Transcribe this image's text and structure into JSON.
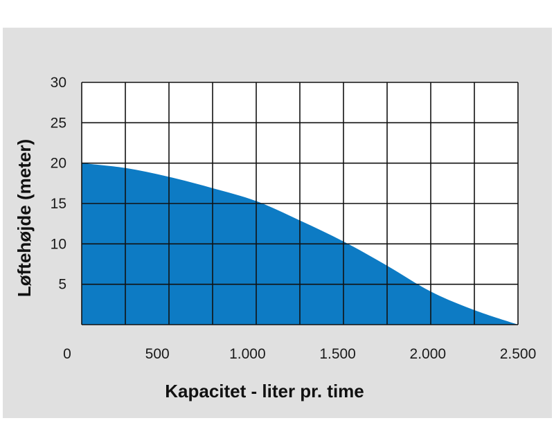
{
  "chart_data": {
    "type": "area",
    "title": "",
    "xlabel": "Kapacitet - liter pr. time",
    "ylabel": "Løftehøjde (meter)",
    "xlim": [
      0,
      2500
    ],
    "ylim": [
      0,
      30
    ],
    "x_ticks": [
      {
        "value": 0,
        "label": "0"
      },
      {
        "value": 500,
        "label": "500"
      },
      {
        "value": 1000,
        "label": "1.000"
      },
      {
        "value": 1500,
        "label": "1.500"
      },
      {
        "value": 2000,
        "label": "2.000"
      },
      {
        "value": 2500,
        "label": "2.500"
      }
    ],
    "y_ticks": [
      {
        "value": 5,
        "label": "5"
      },
      {
        "value": 10,
        "label": "10"
      },
      {
        "value": 15,
        "label": "15"
      },
      {
        "value": 20,
        "label": "20"
      },
      {
        "value": 25,
        "label": "25"
      },
      {
        "value": 30,
        "label": "30"
      }
    ],
    "grid": true,
    "grid_x_step": 250,
    "grid_y_step": 5,
    "series": [
      {
        "x": [
          0,
          250,
          500,
          750,
          1000,
          1250,
          1500,
          1750,
          2000,
          2250,
          2500
        ],
        "values": [
          20,
          19.4,
          18.3,
          16.9,
          15.3,
          12.9,
          10.3,
          7.3,
          4.1,
          1.8,
          0
        ]
      }
    ],
    "colors": {
      "fill": "#0d7bc4",
      "grid": "#111111",
      "plot_background": "#ffffff",
      "panel_background": "#e0e0e0"
    }
  }
}
